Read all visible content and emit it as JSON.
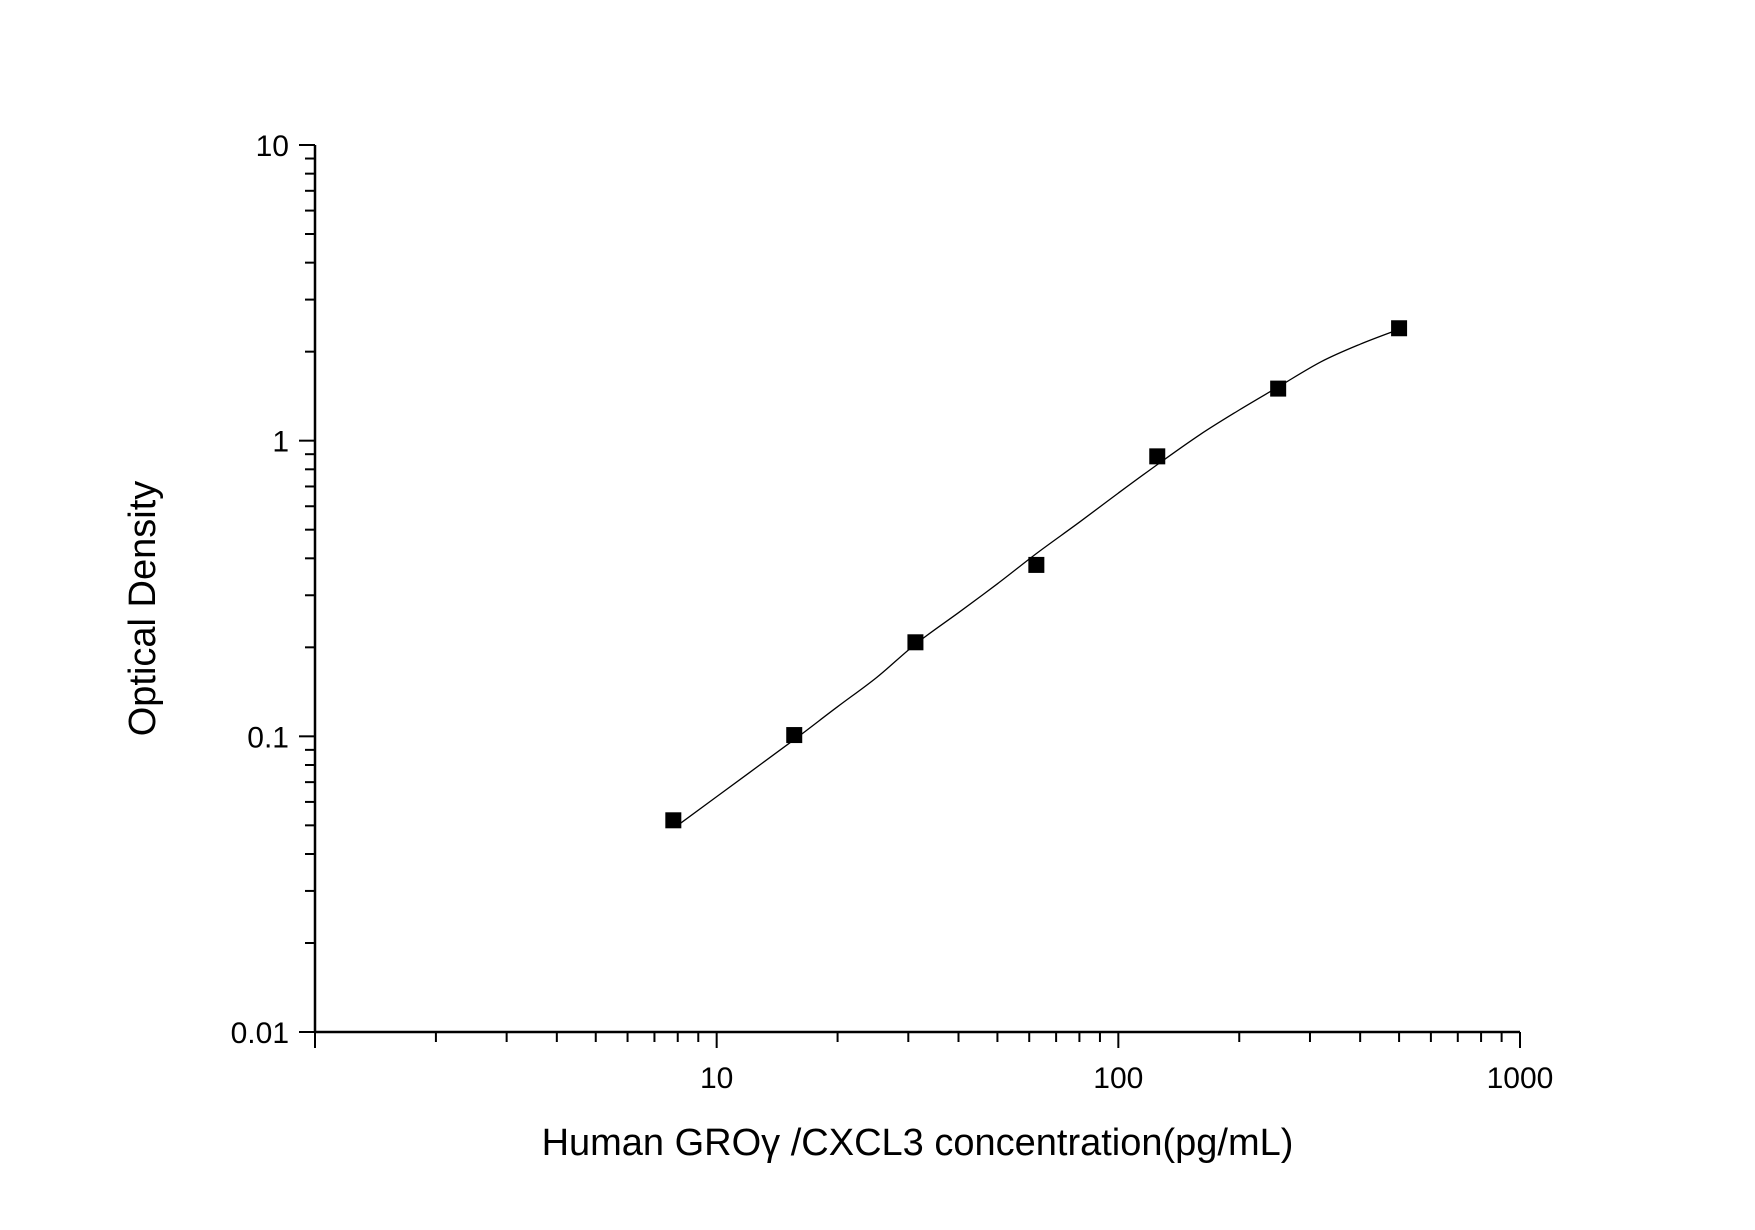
{
  "chart_data": {
    "type": "scatter",
    "xlabel": "Human GROγ  /CXCL3 concentration(pg/mL)",
    "ylabel": "Optical Density",
    "x_scale": "log",
    "y_scale": "log",
    "xlim": [
      1,
      1000
    ],
    "ylim": [
      0.01,
      10
    ],
    "x_tick_labels": [
      "10",
      "100",
      "1000"
    ],
    "y_tick_labels": [
      "0.01",
      "0.1",
      "1",
      "10"
    ],
    "grid": false,
    "legend": "none",
    "series": [
      {
        "marker": "square",
        "x": [
          7.8,
          15.6,
          31.25,
          62.5,
          125,
          250,
          500
        ],
        "y": [
          0.052,
          0.101,
          0.208,
          0.38,
          0.885,
          1.5,
          2.4
        ]
      }
    ],
    "fit_curve": {
      "x": [
        8,
        12,
        16,
        20,
        25,
        31.25,
        40,
        50,
        62.5,
        80,
        100,
        125,
        160,
        200,
        250,
        320,
        400,
        500
      ],
      "y": [
        0.05,
        0.075,
        0.1,
        0.126,
        0.158,
        0.205,
        0.262,
        0.328,
        0.415,
        0.53,
        0.665,
        0.83,
        1.05,
        1.27,
        1.52,
        1.85,
        2.12,
        2.38
      ]
    },
    "colors": {
      "axis": "#000000",
      "marker": "#000000",
      "curve": "#000000"
    }
  }
}
